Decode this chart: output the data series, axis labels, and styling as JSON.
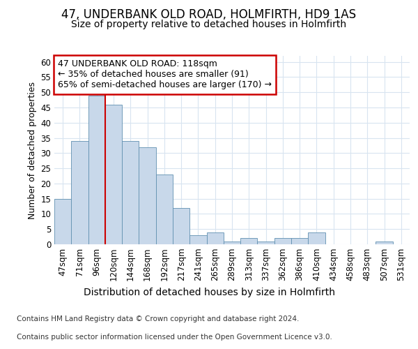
{
  "title1": "47, UNDERBANK OLD ROAD, HOLMFIRTH, HD9 1AS",
  "title2": "Size of property relative to detached houses in Holmfirth",
  "xlabel": "Distribution of detached houses by size in Holmfirth",
  "ylabel": "Number of detached properties",
  "categories": [
    "47sqm",
    "71sqm",
    "96sqm",
    "120sqm",
    "144sqm",
    "168sqm",
    "192sqm",
    "217sqm",
    "241sqm",
    "265sqm",
    "289sqm",
    "313sqm",
    "337sqm",
    "362sqm",
    "386sqm",
    "410sqm",
    "434sqm",
    "458sqm",
    "483sqm",
    "507sqm",
    "531sqm"
  ],
  "values": [
    15,
    34,
    49,
    46,
    34,
    32,
    23,
    12,
    3,
    4,
    1,
    2,
    1,
    2,
    2,
    4,
    0,
    0,
    0,
    1,
    0
  ],
  "bar_color": "#c8d8ea",
  "bar_edge_color": "#6090b0",
  "vline_x": 2.5,
  "vline_color": "#cc0000",
  "annotation_text": "47 UNDERBANK OLD ROAD: 118sqm\n← 35% of detached houses are smaller (91)\n65% of semi-detached houses are larger (170) →",
  "annotation_box_edge_color": "#cc0000",
  "ylim": [
    0,
    62
  ],
  "yticks": [
    0,
    5,
    10,
    15,
    20,
    25,
    30,
    35,
    40,
    45,
    50,
    55,
    60
  ],
  "footer1": "Contains HM Land Registry data © Crown copyright and database right 2024.",
  "footer2": "Contains public sector information licensed under the Open Government Licence v3.0.",
  "bg_color": "#ffffff",
  "plot_bg_color": "#ffffff",
  "grid_color": "#d8e4f0",
  "title1_fontsize": 12,
  "title2_fontsize": 10,
  "xlabel_fontsize": 10,
  "ylabel_fontsize": 9,
  "tick_fontsize": 8.5,
  "annotation_fontsize": 9,
  "footer_fontsize": 7.5
}
